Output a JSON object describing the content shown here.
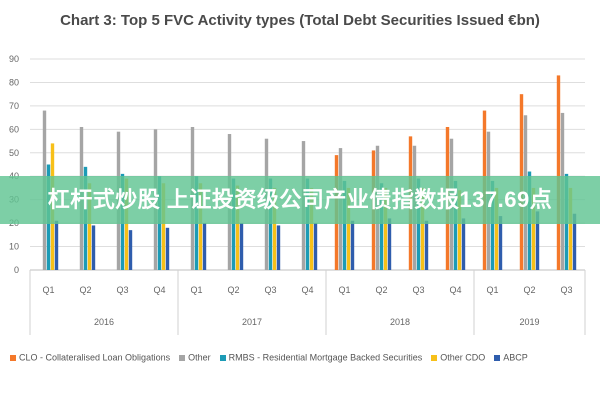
{
  "banner_text": "杠杆式炒股 上证投资级公司产业债指数报137.69点",
  "chart_data": {
    "type": "bar",
    "title": "Chart 3: Top 5 FVC Activity types (Total Debt Securities Issued €bn)",
    "xlabel": "",
    "ylabel": "",
    "ylim": [
      0,
      90
    ],
    "yticks": [
      "0",
      "10",
      "20",
      "30",
      "40",
      "50",
      "60",
      "70",
      "80",
      "90"
    ],
    "grid": true,
    "legend_position": "bottom",
    "categories": [
      "Q1",
      "Q2",
      "Q3",
      "Q4",
      "Q1",
      "Q2",
      "Q3",
      "Q4",
      "Q1",
      "Q2",
      "Q3",
      "Q4",
      "Q1",
      "Q2",
      "Q3"
    ],
    "groups": [
      {
        "label": "2016",
        "count": 4
      },
      {
        "label": "2017",
        "count": 4
      },
      {
        "label": "2018",
        "count": 4
      },
      {
        "label": "2019",
        "count": 3
      }
    ],
    "series": [
      {
        "name": "CLO - Collateralised Loan Obligations",
        "color": "#f4782a",
        "values": [
          null,
          null,
          null,
          null,
          null,
          null,
          null,
          null,
          49,
          51,
          57,
          61,
          68,
          75,
          83
        ]
      },
      {
        "name": "Other",
        "color": "#a5a5a5",
        "values": [
          68,
          61,
          59,
          60,
          61,
          58,
          56,
          55,
          52,
          53,
          53,
          56,
          59,
          66,
          67
        ]
      },
      {
        "name": "RMBS - Residential Mortgage Backed Securities",
        "color": "#1c9bb6",
        "values": [
          45,
          44,
          41,
          40,
          40,
          39,
          39,
          39,
          38,
          37,
          39,
          38,
          38,
          42,
          41
        ]
      },
      {
        "name": "Other CDO",
        "color": "#f7c019",
        "values": [
          54,
          37,
          39,
          37,
          37,
          36,
          35,
          35,
          35,
          35,
          35,
          34,
          35,
          35,
          35
        ]
      },
      {
        "name": "ABCP",
        "color": "#2f5dad",
        "values": [
          21,
          19,
          17,
          18,
          20,
          20,
          19,
          20,
          21,
          22,
          21,
          22,
          23,
          25,
          24
        ]
      }
    ]
  }
}
